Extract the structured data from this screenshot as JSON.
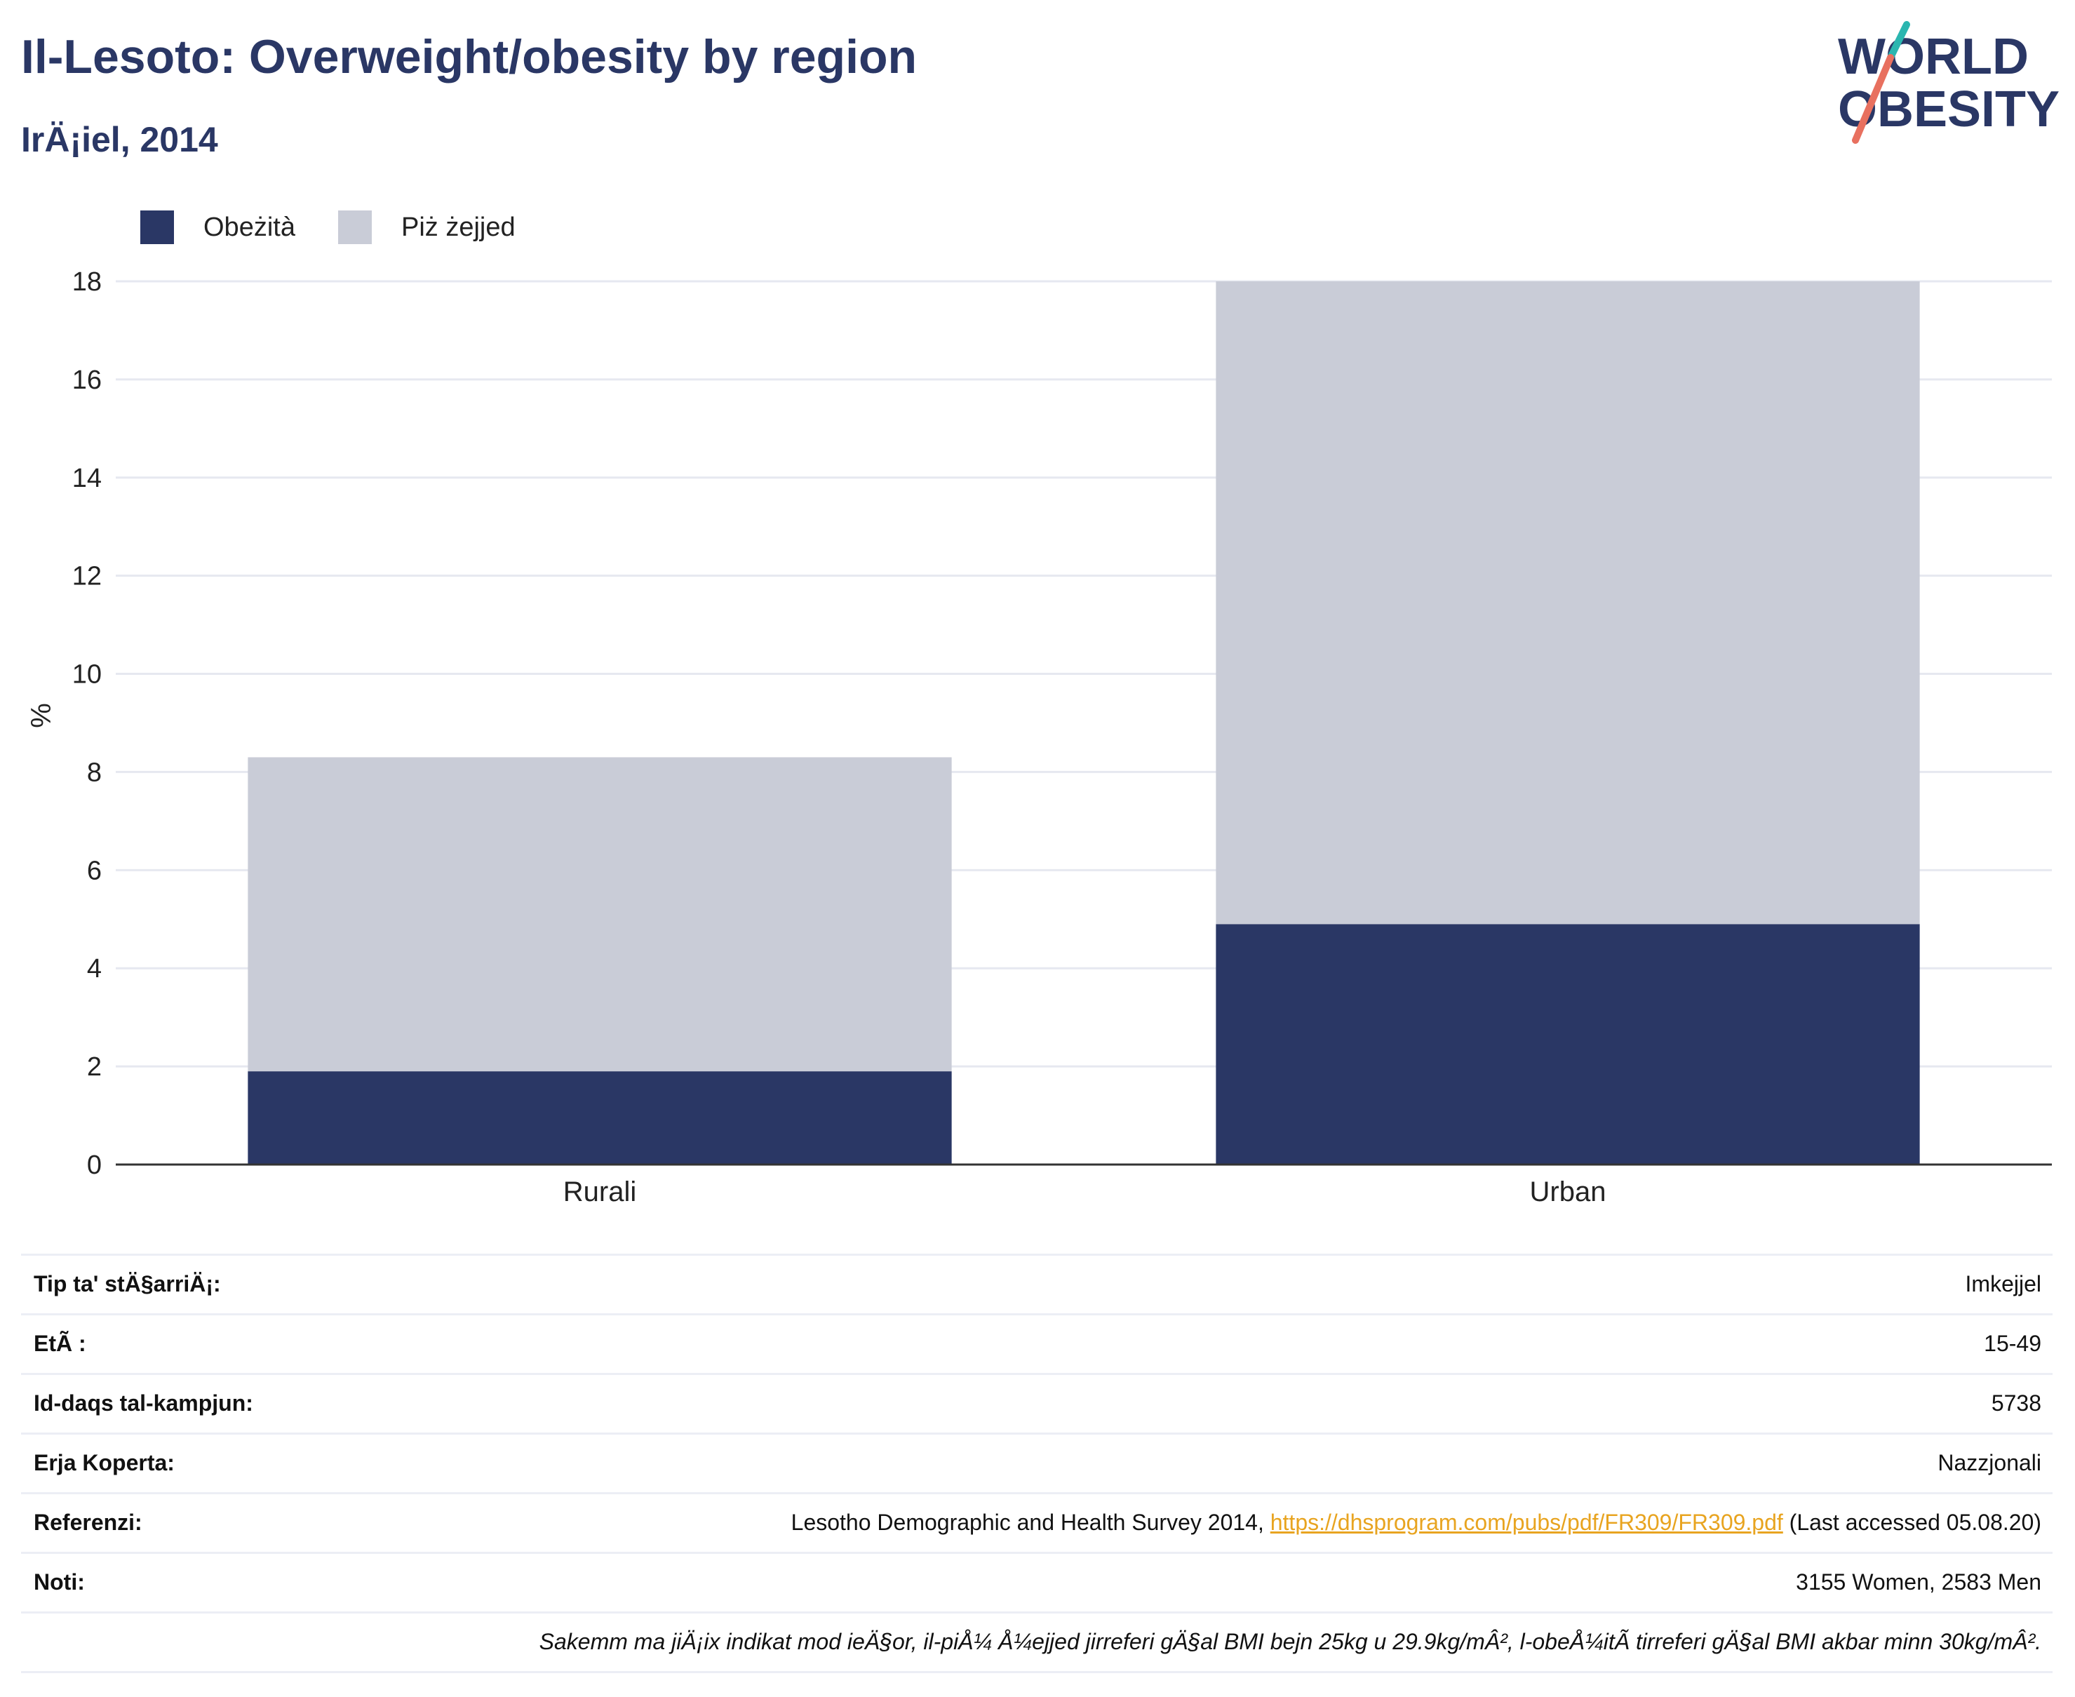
{
  "header": {
    "title": "Il-Lesoto: Overweight/obesity by region",
    "subtitle": "IrÄ¡iel, 2014"
  },
  "logo": {
    "line1": "WORLD",
    "line2": "OBESITY",
    "accent_colors": [
      "#2bb6b0",
      "#e8705f"
    ],
    "text_color": "#2a3765"
  },
  "colors": {
    "obesity": "#2a3765",
    "overweight": "#c9ccd7",
    "link": "#e8a420"
  },
  "legend": {
    "items": [
      {
        "label": "Obeżità",
        "color": "#2a3765"
      },
      {
        "label": "Piż żejjed",
        "color": "#c9ccd7"
      }
    ]
  },
  "chart_data": {
    "type": "bar",
    "stacked": true,
    "categories": [
      "Rurali",
      "Urban"
    ],
    "series": [
      {
        "name": "Obeżità",
        "values": [
          1.9,
          4.9
        ]
      },
      {
        "name": "Piż żejjed",
        "values": [
          6.4,
          13.1
        ]
      }
    ],
    "ylabel": "%",
    "ylim": [
      0,
      18.3
    ],
    "yticks": [
      0,
      2,
      4,
      6,
      8,
      10,
      12,
      14,
      16,
      18
    ],
    "grid": true,
    "legend_position": "top-left"
  },
  "info": {
    "rows": [
      {
        "label": "Tip ta' stÄ§arriÄ¡:",
        "value": "Imkejjel"
      },
      {
        "label": "EtÃ :",
        "value": "15-49"
      },
      {
        "label": "Id-daqs tal-kampjun:",
        "value": "5738"
      },
      {
        "label": "Erja Koperta:",
        "value": "Nazzjonali"
      }
    ],
    "reference": {
      "label": "Referenzi:",
      "text_before": "Lesotho Demographic and Health Survey 2014, ",
      "link": "https://dhsprogram.com/pubs/pdf/FR309/FR309.pdf",
      "text_after": " (Last accessed 05.08.20)"
    },
    "notes": {
      "label": "Noti:",
      "value": "3155 Women, 2583 Men"
    },
    "footnote": "Sakemm ma jiÄ¡ix indikat mod ieÄ§or, il-piÅ¼ Å¼ejjed jirreferi gÄ§al BMI bejn 25kg u 29.9kg/mÂ², l-obeÅ¼itÃ  tirreferi gÄ§al BMI akbar minn 30kg/mÂ²."
  }
}
